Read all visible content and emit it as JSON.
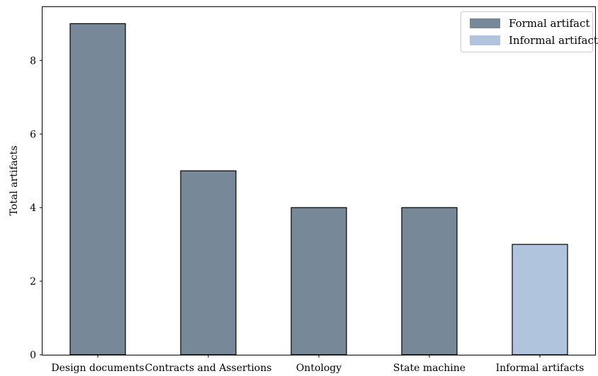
{
  "chart_data": {
    "type": "bar",
    "title": "",
    "xlabel": "",
    "ylabel": "Total artifacts",
    "ylim": [
      0,
      9.45
    ],
    "yticks": [
      0,
      2,
      4,
      6,
      8
    ],
    "categories": [
      "Design documents",
      "Contracts and Assertions",
      "Ontology",
      "State machine",
      "Informal artifacts"
    ],
    "values": [
      9,
      5,
      4,
      4,
      3
    ],
    "bar_types": [
      "Formal artifact",
      "Formal artifact",
      "Formal artifact",
      "Formal artifact",
      "Informal artifact"
    ],
    "grid": false,
    "legend": {
      "placement": "top-right",
      "entries": [
        {
          "label": "Formal artifact",
          "color": "#778899"
        },
        {
          "label": "Informal artifact",
          "color": "#B0C4DE"
        }
      ]
    },
    "colors": {
      "Formal artifact": "#778899",
      "Informal artifact": "#B0C4DE",
      "edge": "#000000"
    }
  }
}
